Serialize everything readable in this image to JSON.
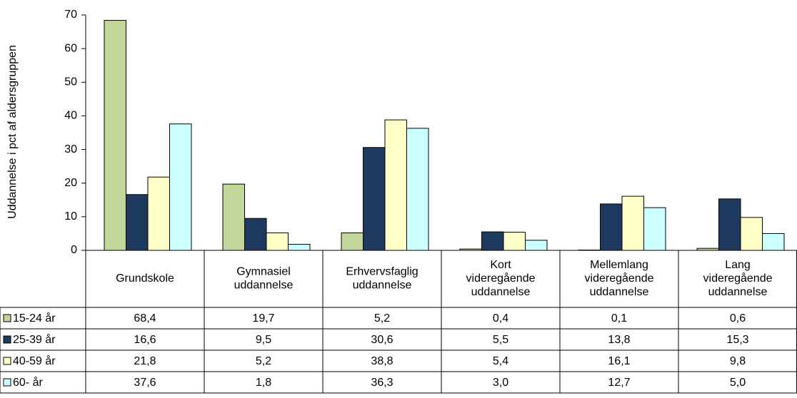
{
  "chart_data": {
    "type": "bar",
    "y_label": "Uddannelse i pct af aldersgruppen",
    "categories": [
      "Grundskole",
      "Gymnasiel\nuddannelse",
      "Erhvervsfaglig\nuddannelse",
      "Kort\nvideregående\nuddannelse",
      "Mellemlang\nvideregående\nuddannelse",
      "Lang\nvideregående\nuddannelse"
    ],
    "series": [
      {
        "name": "15-24 år",
        "color": "#c4d79b",
        "values": [
          68.4,
          19.7,
          5.2,
          0.4,
          0.1,
          0.6
        ],
        "value_labels": [
          "68,4",
          "19,7",
          "5,2",
          "0,4",
          "0,1",
          "0,6"
        ]
      },
      {
        "name": "25-39 år",
        "color": "#1f3a5f",
        "values": [
          16.6,
          9.5,
          30.6,
          5.5,
          13.8,
          15.3
        ],
        "value_labels": [
          "16,6",
          "9,5",
          "30,6",
          "5,5",
          "13,8",
          "15,3"
        ]
      },
      {
        "name": "40-59 år",
        "color": "#ffffc8",
        "values": [
          21.8,
          5.2,
          38.8,
          5.4,
          16.1,
          9.8
        ],
        "value_labels": [
          "21,8",
          "5,2",
          "38,8",
          "5,4",
          "16,1",
          "9,8"
        ]
      },
      {
        "name": "60- år",
        "color": "#ccffff",
        "values": [
          37.6,
          1.8,
          36.3,
          3.0,
          12.7,
          5.0
        ],
        "value_labels": [
          "37,6",
          "1,8",
          "36,3",
          "3,0",
          "12,7",
          "5,0"
        ]
      }
    ],
    "ylim": [
      0,
      70
    ],
    "yticks": [
      0,
      10,
      20,
      30,
      40,
      50,
      60,
      70
    ],
    "grid": false
  }
}
